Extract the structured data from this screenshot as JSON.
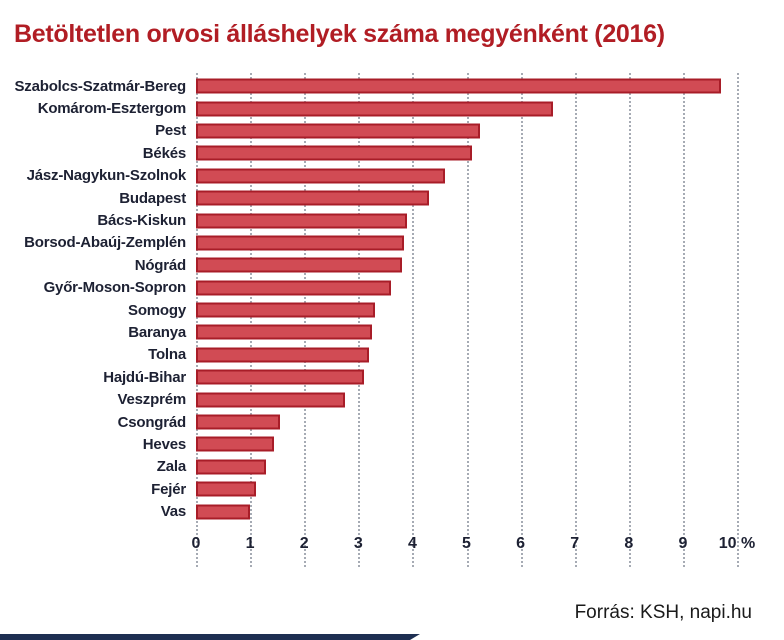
{
  "title": "Betöltetlen orvosi álláshelyek száma megyénként (2016)",
  "source": "Forrás: KSH, napi.hu",
  "colors": {
    "title_red": "#b11d24",
    "bar_fill": "#d14b54",
    "bar_border": "#a81d28",
    "label_text": "#1d2133",
    "gridline": "#a6abb4",
    "bottom_accent": "#1e2f52"
  },
  "chart_data": {
    "type": "bar",
    "orientation": "horizontal",
    "title": "Betöltetlen orvosi álláshelyek száma megyénként (2016)",
    "categories": [
      "Szabolcs-Szatmár-Bereg",
      "Komárom-Esztergom",
      "Pest",
      "Békés",
      "Jász-Nagykun-Szolnok",
      "Budapest",
      "Bács-Kiskun",
      "Borsod-Abaúj-Zemplén",
      "Nógrád",
      "Győr-Moson-Sopron",
      "Somogy",
      "Baranya",
      "Tolna",
      "Hajdú-Bihar",
      "Veszprém",
      "Csongrád",
      "Heves",
      "Zala",
      "Fejér",
      "Vas"
    ],
    "values": [
      9.7,
      6.6,
      5.25,
      5.1,
      4.6,
      4.3,
      3.9,
      3.85,
      3.8,
      3.6,
      3.3,
      3.25,
      3.2,
      3.1,
      2.75,
      1.55,
      1.45,
      1.3,
      1.1,
      1.0
    ],
    "unit": "%",
    "xlim": [
      0,
      10
    ],
    "xticks": [
      0,
      1,
      2,
      3,
      4,
      5,
      6,
      7,
      8,
      9,
      10
    ],
    "xtick_labels": [
      "0",
      "1",
      "2",
      "3",
      "4",
      "5",
      "6",
      "7",
      "8",
      "9",
      "10 %"
    ],
    "grid": "vertical-dotted",
    "legend": "none",
    "source": "Forrás: KSH, napi.hu"
  }
}
